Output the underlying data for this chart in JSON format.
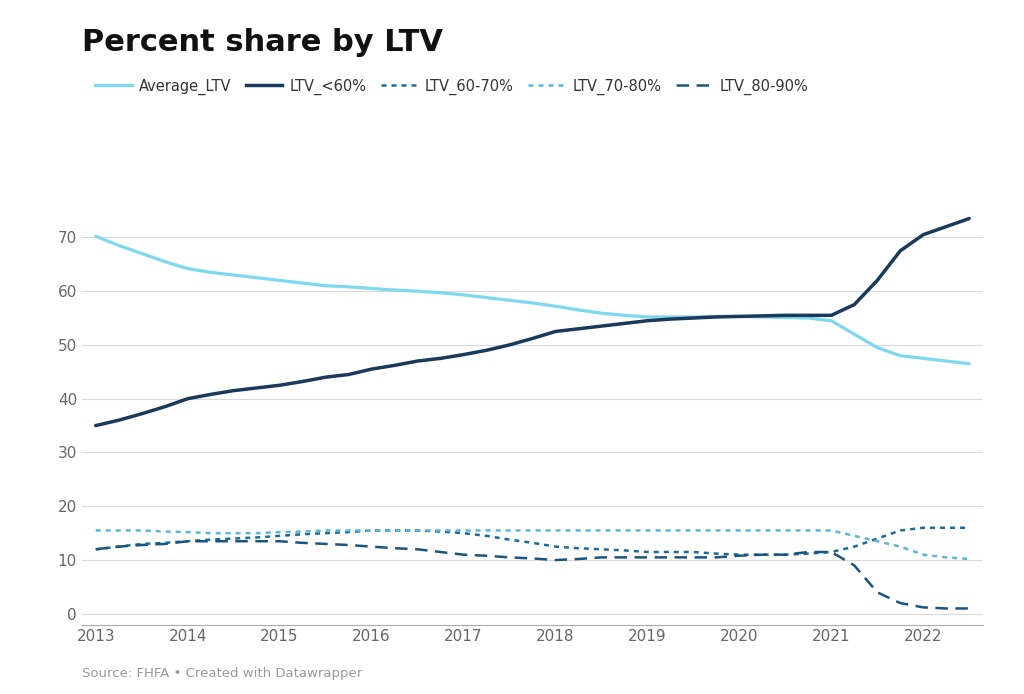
{
  "title": "Percent share by LTV",
  "source_text": "Source: FHFA • Created with Datawrapper",
  "years": [
    2013,
    2013.25,
    2013.5,
    2013.75,
    2014,
    2014.25,
    2014.5,
    2014.75,
    2015,
    2015.25,
    2015.5,
    2015.75,
    2016,
    2016.25,
    2016.5,
    2016.75,
    2017,
    2017.25,
    2017.5,
    2017.75,
    2018,
    2018.25,
    2018.5,
    2018.75,
    2019,
    2019.25,
    2019.5,
    2019.75,
    2020,
    2020.25,
    2020.5,
    2020.75,
    2021,
    2021.25,
    2021.5,
    2021.75,
    2022,
    2022.25,
    2022.5
  ],
  "Average_LTV": [
    70.2,
    68.5,
    67.0,
    65.5,
    64.2,
    63.5,
    63.0,
    62.5,
    62.0,
    61.5,
    61.0,
    60.8,
    60.5,
    60.2,
    60.0,
    59.7,
    59.3,
    58.8,
    58.3,
    57.8,
    57.2,
    56.5,
    55.9,
    55.5,
    55.2,
    55.2,
    55.2,
    55.3,
    55.3,
    55.2,
    55.1,
    55.0,
    54.5,
    52.0,
    49.5,
    48.0,
    47.5,
    47.0,
    46.5
  ],
  "LTV_lt60": [
    35.0,
    36.0,
    37.2,
    38.5,
    40.0,
    40.8,
    41.5,
    42.0,
    42.5,
    43.2,
    44.0,
    44.5,
    45.5,
    46.2,
    47.0,
    47.5,
    48.2,
    49.0,
    50.0,
    51.2,
    52.5,
    53.0,
    53.5,
    54.0,
    54.5,
    54.8,
    55.0,
    55.2,
    55.3,
    55.4,
    55.5,
    55.5,
    55.5,
    57.5,
    62.0,
    67.5,
    70.5,
    72.0,
    73.5
  ],
  "LTV_60_70": [
    12.0,
    12.5,
    13.0,
    13.2,
    13.5,
    13.8,
    14.0,
    14.2,
    14.5,
    14.8,
    15.0,
    15.2,
    15.5,
    15.5,
    15.5,
    15.3,
    15.0,
    14.5,
    13.8,
    13.2,
    12.5,
    12.2,
    12.0,
    11.8,
    11.5,
    11.5,
    11.5,
    11.2,
    11.0,
    11.0,
    11.0,
    11.2,
    11.5,
    12.5,
    14.0,
    15.5,
    16.0,
    16.0,
    16.0
  ],
  "LTV_70_80": [
    15.5,
    15.5,
    15.5,
    15.3,
    15.2,
    15.0,
    15.0,
    15.0,
    15.2,
    15.3,
    15.5,
    15.5,
    15.5,
    15.5,
    15.5,
    15.5,
    15.5,
    15.5,
    15.5,
    15.5,
    15.5,
    15.5,
    15.5,
    15.5,
    15.5,
    15.5,
    15.5,
    15.5,
    15.5,
    15.5,
    15.5,
    15.5,
    15.5,
    14.5,
    13.5,
    12.5,
    11.0,
    10.5,
    10.2
  ],
  "LTV_80_90": [
    12.0,
    12.5,
    12.8,
    13.0,
    13.5,
    13.5,
    13.5,
    13.5,
    13.5,
    13.2,
    13.0,
    12.8,
    12.5,
    12.2,
    12.0,
    11.5,
    11.0,
    10.8,
    10.5,
    10.3,
    10.0,
    10.2,
    10.5,
    10.5,
    10.5,
    10.5,
    10.5,
    10.5,
    10.8,
    11.0,
    11.0,
    11.5,
    11.5,
    9.0,
    4.0,
    2.0,
    1.2,
    1.0,
    1.0
  ],
  "colors": {
    "Average_LTV": "#7DD8F0",
    "LTV_lt60": "#1A3A5C",
    "LTV_60_70": "#1A6B9A",
    "LTV_70_80": "#5BB8D4",
    "LTV_80_90": "#1A5580"
  },
  "yticks": [
    0,
    10,
    20,
    30,
    40,
    50,
    60,
    70
  ],
  "xticks": [
    2013,
    2014,
    2015,
    2016,
    2017,
    2018,
    2019,
    2020,
    2021,
    2022
  ],
  "ylim": [
    -2,
    78
  ],
  "xlim": [
    2012.85,
    2022.65
  ],
  "background_color": "#ffffff",
  "grid_color": "#d9d9d9"
}
